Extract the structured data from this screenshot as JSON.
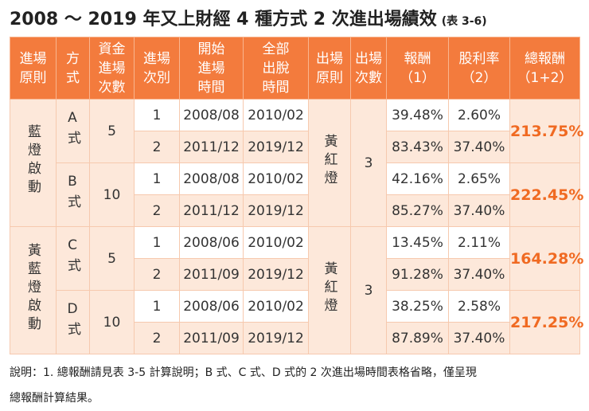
{
  "title": "2008 ～ 2019 年又上財經 4 種方式 2 次進出場績效",
  "title_note": "(表 3-6)",
  "table": {
    "header": [
      [
        "進場",
        "原則"
      ],
      [
        "方",
        "式"
      ],
      [
        "資金",
        "進場",
        "次數"
      ],
      [
        "進場",
        "次別"
      ],
      [
        "開始",
        "進場",
        "時間"
      ],
      [
        "全部",
        "出脫",
        "時間"
      ],
      [
        "出場",
        "原則"
      ],
      [
        "出場",
        "次數"
      ],
      [
        "報酬",
        "（1）"
      ],
      [
        "股利率",
        "（2）"
      ],
      [
        "總報酬",
        "（1+2）"
      ]
    ],
    "groups": [
      {
        "entry": "藍燈啟動",
        "exit": "黃紅燈",
        "exit_count": "3",
        "methods": [
          {
            "method": "A式",
            "capital": "5",
            "total": "213.75%",
            "trades": [
              [
                "1",
                "2008/08",
                "2010/02",
                "39.48%",
                "2.60%"
              ],
              [
                "2",
                "2011/12",
                "2019/12",
                "83.43%",
                "37.40%"
              ]
            ]
          },
          {
            "method": "B式",
            "capital": "10",
            "total": "222.45%",
            "trades": [
              [
                "1",
                "2008/08",
                "2010/02",
                "42.16%",
                "2.65%"
              ],
              [
                "2",
                "2011/12",
                "2019/12",
                "85.27%",
                "37.40%"
              ]
            ]
          }
        ]
      },
      {
        "entry": "黃藍燈啟動",
        "exit": "黃紅燈",
        "exit_count": "3",
        "methods": [
          {
            "method": "C式",
            "capital": "5",
            "total": "164.28%",
            "trades": [
              [
                "1",
                "2008/06",
                "2010/02",
                "13.45%",
                "2.11%"
              ],
              [
                "2",
                "2011/09",
                "2019/12",
                "91.28%",
                "37.40%"
              ]
            ]
          },
          {
            "method": "D式",
            "capital": "10",
            "total": "217.25%",
            "trades": [
              [
                "1",
                "2008/06",
                "2010/02",
                "38.25%",
                "2.58%"
              ],
              [
                "2",
                "2011/09",
                "2019/12",
                "87.89%",
                "37.40%"
              ]
            ]
          }
        ]
      }
    ]
  },
  "notes": [
    "說明：1. 總報酬請見表 3-5 計算說明；B 式、C 式、D 式的 2 次進出場時間表格省略，僅呈現",
    "總報酬計算結果。"
  ]
}
